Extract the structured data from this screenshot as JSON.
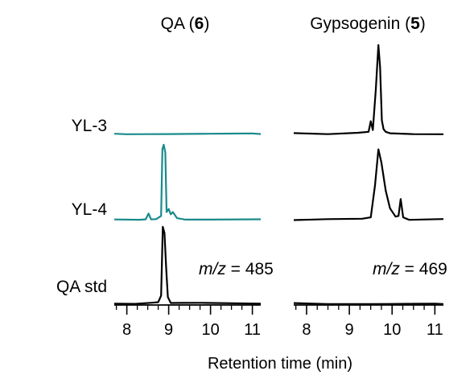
{
  "chart_data": [
    {
      "type": "line",
      "title": "QA (6)",
      "title_main": "QA (",
      "title_bold": "6",
      "title_close": ")",
      "annotation": {
        "italic": "m/z",
        "rest": " = 485"
      },
      "xlabel": "Retention time (min)",
      "xlim": [
        7.7,
        11.2
      ],
      "xticks": [
        8,
        9,
        10,
        11
      ],
      "xtick_labels": [
        "8",
        "9",
        "10",
        "11"
      ],
      "grid": false,
      "series": [
        {
          "name": "YL-3",
          "color": "#1a8a8c",
          "x": [
            7.7,
            8.0,
            8.5,
            9.0,
            9.5,
            10.0,
            10.5,
            11.0,
            11.2
          ],
          "y": [
            0,
            0,
            0,
            0,
            0,
            0,
            0,
            0,
            0
          ]
        },
        {
          "name": "YL-4",
          "color": "#1a8a8c",
          "x": [
            7.7,
            8.3,
            8.45,
            8.52,
            8.58,
            8.7,
            8.82,
            8.85,
            8.88,
            8.92,
            8.95,
            9.0,
            9.05,
            9.1,
            9.2,
            9.4,
            10.0,
            11.2
          ],
          "y": [
            0,
            0,
            0.01,
            0.08,
            0.01,
            0,
            0.05,
            0.92,
            0.98,
            0.88,
            0.1,
            0.14,
            0.07,
            0.1,
            0.02,
            0,
            0,
            0
          ]
        },
        {
          "name": "QA std",
          "color": "#000000",
          "x": [
            7.7,
            8.2,
            8.6,
            8.75,
            8.82,
            8.86,
            8.9,
            8.94,
            8.98,
            9.05,
            9.3,
            9.8,
            10.5,
            11.2
          ],
          "y": [
            0,
            0,
            0,
            0.01,
            0.1,
            0.98,
            0.9,
            0.45,
            0.08,
            0.01,
            0,
            0,
            0,
            0
          ]
        }
      ]
    },
    {
      "type": "line",
      "title": "Gypsogenin (5)",
      "title_main": "Gypsogenin (",
      "title_bold": "5",
      "title_close": ")",
      "annotation": {
        "italic": "m/z",
        "rest": " = 469"
      },
      "xlabel": "Retention time (min)",
      "xlim": [
        7.7,
        11.2
      ],
      "xticks": [
        8,
        9,
        10,
        11
      ],
      "xtick_labels": [
        "8",
        "9",
        "10",
        "11"
      ],
      "grid": false,
      "series": [
        {
          "name": "YL-3",
          "color": "#000000",
          "x": [
            7.7,
            8.5,
            9.2,
            9.45,
            9.5,
            9.55,
            9.62,
            9.68,
            9.72,
            9.76,
            9.8,
            9.85,
            9.95,
            10.5,
            11.2
          ],
          "y": [
            0,
            0,
            0.01,
            0.02,
            0.14,
            0.04,
            0.5,
            1.0,
            0.75,
            0.15,
            0.05,
            0.02,
            0,
            0,
            0
          ]
        },
        {
          "name": "YL-4",
          "color": "#000000",
          "x": [
            7.7,
            8.5,
            9.3,
            9.5,
            9.6,
            9.68,
            9.75,
            9.85,
            9.95,
            10.08,
            10.15,
            10.2,
            10.26,
            10.4,
            11.2
          ],
          "y": [
            0,
            0,
            0.01,
            0.03,
            0.45,
            0.92,
            0.75,
            0.38,
            0.15,
            0.04,
            0.05,
            0.27,
            0.03,
            0,
            0
          ]
        },
        {
          "name": "QA std",
          "color": "#000000",
          "x": [
            7.7,
            8.5,
            9.0,
            9.5,
            10.0,
            10.5,
            11.0,
            11.2
          ],
          "y": [
            0,
            0,
            0,
            0,
            0,
            0,
            0,
            0
          ]
        }
      ]
    }
  ],
  "row_labels": [
    "YL-3",
    "YL-4",
    "QA std"
  ]
}
